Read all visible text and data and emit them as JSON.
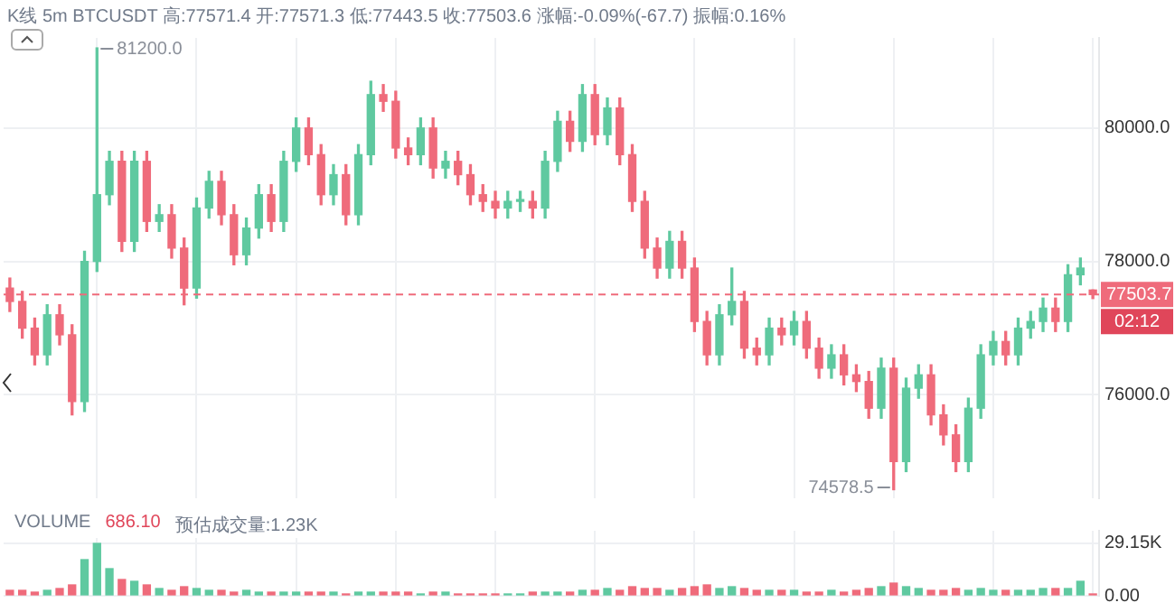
{
  "chart_data": [
    {
      "type": "candlestick",
      "title": "K线 5m BTCUSDT 高:77571.4 开:77571.3 低:77443.5 收:77503.6 涨幅:-0.09%(-67.7) 振幅:0.16%",
      "categories": [
        null,
        null,
        null,
        null,
        null,
        null,
        null,
        null,
        null,
        null,
        null,
        null,
        null,
        null,
        null,
        null,
        null,
        null,
        null,
        null,
        null,
        null,
        null,
        null,
        null,
        null,
        null,
        null,
        null,
        null,
        null,
        null,
        null,
        null,
        null,
        null,
        null,
        null,
        null,
        null,
        null,
        null,
        null,
        null,
        null,
        null,
        null,
        null,
        null,
        null,
        null,
        null,
        null,
        null,
        null,
        null,
        null,
        null,
        null,
        null,
        null,
        null,
        null,
        null,
        null,
        null,
        null,
        null,
        null,
        null,
        null,
        null,
        null,
        null,
        null,
        null,
        null,
        null,
        null,
        null,
        null,
        null,
        null,
        null,
        null,
        null,
        null,
        null
      ],
      "ohlc": [
        [
          77600,
          77750,
          77250,
          77400
        ],
        [
          77400,
          77550,
          76850,
          77000
        ],
        [
          77000,
          77150,
          76450,
          76600
        ],
        [
          76600,
          77350,
          76450,
          77200
        ],
        [
          77200,
          77350,
          76750,
          76900
        ],
        [
          76900,
          77050,
          75700,
          75900
        ],
        [
          75900,
          78150,
          75750,
          78000
        ],
        [
          78000,
          81200,
          77850,
          79000
        ],
        [
          79000,
          79650,
          78850,
          79500
        ],
        [
          79500,
          79650,
          78150,
          78300
        ],
        [
          78300,
          79650,
          78150,
          79500
        ],
        [
          79500,
          79650,
          78450,
          78600
        ],
        [
          78600,
          78850,
          78450,
          78700
        ],
        [
          78700,
          78850,
          78050,
          78200
        ],
        [
          78200,
          78350,
          77350,
          77600
        ],
        [
          77600,
          78950,
          77450,
          78800
        ],
        [
          78800,
          79350,
          78650,
          79200
        ],
        [
          79200,
          79350,
          78550,
          78700
        ],
        [
          78700,
          78850,
          77950,
          78100
        ],
        [
          78100,
          78650,
          77950,
          78500
        ],
        [
          78500,
          79150,
          78350,
          79000
        ],
        [
          79000,
          79150,
          78450,
          78600
        ],
        [
          78600,
          79650,
          78450,
          79500
        ],
        [
          79500,
          80150,
          79350,
          80000
        ],
        [
          80000,
          80150,
          79450,
          79600
        ],
        [
          79600,
          79750,
          78850,
          79000
        ],
        [
          79000,
          79450,
          78850,
          79300
        ],
        [
          79300,
          79450,
          78550,
          78700
        ],
        [
          78700,
          79750,
          78550,
          79600
        ],
        [
          79600,
          80700,
          79450,
          80500
        ],
        [
          80500,
          80650,
          80250,
          80400
        ],
        [
          80400,
          80550,
          79550,
          79700
        ],
        [
          79700,
          79850,
          79450,
          79600
        ],
        [
          79600,
          80150,
          79450,
          80000
        ],
        [
          80000,
          80150,
          79250,
          79400
        ],
        [
          79400,
          79650,
          79250,
          79500
        ],
        [
          79500,
          79650,
          79150,
          79300
        ],
        [
          79300,
          79450,
          78850,
          79000
        ],
        [
          79000,
          79150,
          78750,
          78900
        ],
        [
          78900,
          79050,
          78650,
          78800
        ],
        [
          78800,
          79050,
          78650,
          78900
        ],
        [
          78900,
          79050,
          78750,
          78900
        ],
        [
          78900,
          79050,
          78650,
          78800
        ],
        [
          78800,
          79650,
          78650,
          79500
        ],
        [
          79500,
          80250,
          79350,
          80100
        ],
        [
          80100,
          80250,
          79650,
          79800
        ],
        [
          79800,
          80650,
          79650,
          80500
        ],
        [
          80500,
          80650,
          79750,
          79900
        ],
        [
          79900,
          80450,
          79750,
          80300
        ],
        [
          80300,
          80450,
          79450,
          79600
        ],
        [
          79600,
          79750,
          78750,
          78900
        ],
        [
          78900,
          79050,
          78050,
          78200
        ],
        [
          78200,
          78350,
          77750,
          77900
        ],
        [
          77900,
          78450,
          77750,
          78300
        ],
        [
          78300,
          78450,
          77750,
          77900
        ],
        [
          77900,
          78050,
          76950,
          77100
        ],
        [
          77100,
          77250,
          76450,
          76600
        ],
        [
          76600,
          77350,
          76450,
          77200
        ],
        [
          77200,
          77900,
          77050,
          77400
        ],
        [
          77400,
          77550,
          76550,
          76700
        ],
        [
          76700,
          76850,
          76450,
          76600
        ],
        [
          76600,
          77150,
          76450,
          77000
        ],
        [
          77000,
          77150,
          76750,
          76900
        ],
        [
          76900,
          77250,
          76750,
          77100
        ],
        [
          77100,
          77250,
          76550,
          76700
        ],
        [
          76700,
          76850,
          76250,
          76400
        ],
        [
          76400,
          76750,
          76250,
          76600
        ],
        [
          76600,
          76750,
          76150,
          76300
        ],
        [
          76300,
          76450,
          76050,
          76200
        ],
        [
          76200,
          76350,
          75650,
          75800
        ],
        [
          75800,
          76550,
          75650,
          76400
        ],
        [
          76400,
          76550,
          74578.5,
          75000
        ],
        [
          75000,
          76250,
          74850,
          76100
        ],
        [
          76100,
          76450,
          75950,
          76300
        ],
        [
          76300,
          76450,
          75550,
          75700
        ],
        [
          75700,
          75850,
          75250,
          75400
        ],
        [
          75400,
          75550,
          74850,
          75000
        ],
        [
          75000,
          75950,
          74850,
          75800
        ],
        [
          75800,
          76750,
          75650,
          76600
        ],
        [
          76600,
          76950,
          76450,
          76800
        ],
        [
          76800,
          76950,
          76450,
          76600
        ],
        [
          76600,
          77150,
          76450,
          77000
        ],
        [
          77000,
          77250,
          76850,
          77100
        ],
        [
          77100,
          77450,
          76950,
          77300
        ],
        [
          77300,
          77450,
          76950,
          77100
        ],
        [
          77100,
          77950,
          76950,
          77800
        ],
        [
          77800,
          78050,
          77650,
          77900
        ],
        [
          77571.3,
          77571.4,
          77443.5,
          77503.6
        ]
      ],
      "colors": [
        "#ef6b7b",
        "#ef6b7b",
        "#ef6b7b",
        "#5fc9a0",
        "#ef6b7b",
        "#ef6b7b",
        "#5fc9a0",
        "#5fc9a0",
        "#5fc9a0",
        "#ef6b7b",
        "#5fc9a0",
        "#ef6b7b",
        "#5fc9a0",
        "#ef6b7b",
        "#ef6b7b",
        "#5fc9a0",
        "#5fc9a0",
        "#ef6b7b",
        "#ef6b7b",
        "#5fc9a0",
        "#5fc9a0",
        "#ef6b7b",
        "#5fc9a0",
        "#5fc9a0",
        "#ef6b7b",
        "#ef6b7b",
        "#5fc9a0",
        "#ef6b7b",
        "#5fc9a0",
        "#5fc9a0",
        "#ef6b7b",
        "#ef6b7b",
        "#ef6b7b",
        "#5fc9a0",
        "#ef6b7b",
        "#5fc9a0",
        "#ef6b7b",
        "#ef6b7b",
        "#ef6b7b",
        "#ef6b7b",
        "#5fc9a0",
        "#5fc9a0",
        "#ef6b7b",
        "#5fc9a0",
        "#5fc9a0",
        "#ef6b7b",
        "#5fc9a0",
        "#ef6b7b",
        "#5fc9a0",
        "#ef6b7b",
        "#ef6b7b",
        "#ef6b7b",
        "#ef6b7b",
        "#5fc9a0",
        "#ef6b7b",
        "#ef6b7b",
        "#ef6b7b",
        "#5fc9a0",
        "#5fc9a0",
        "#ef6b7b",
        "#ef6b7b",
        "#5fc9a0",
        "#ef6b7b",
        "#5fc9a0",
        "#ef6b7b",
        "#ef6b7b",
        "#5fc9a0",
        "#ef6b7b",
        "#ef6b7b",
        "#ef6b7b",
        "#5fc9a0",
        "#ef6b7b",
        "#5fc9a0",
        "#5fc9a0",
        "#ef6b7b",
        "#ef6b7b",
        "#ef6b7b",
        "#5fc9a0",
        "#5fc9a0",
        "#5fc9a0",
        "#ef6b7b",
        "#5fc9a0",
        "#5fc9a0",
        "#5fc9a0",
        "#ef6b7b",
        "#5fc9a0",
        "#5fc9a0",
        "#ef6b7b"
      ],
      "ylim": [
        74450,
        81350
      ],
      "yticks": [
        {
          "value": 76000,
          "label": "76000.0"
        },
        {
          "value": 78000,
          "label": "78000.0"
        },
        {
          "value": 80000,
          "label": "80000.0"
        }
      ],
      "tick_labels": "y",
      "grid": true,
      "ref_lines": [
        {
          "axis": "y",
          "value": 77503.7,
          "label": "77503.7",
          "color": "#ef6b7b",
          "line_style": "dashed"
        }
      ],
      "annotations": [
        "81200.0",
        "74578.5",
        "02:12"
      ]
    },
    {
      "type": "bar",
      "categories": [
        null,
        null,
        null,
        null,
        null,
        null,
        null,
        null,
        null,
        null,
        null,
        null,
        null,
        null,
        null,
        null,
        null,
        null,
        null,
        null,
        null,
        null,
        null,
        null,
        null,
        null,
        null,
        null,
        null,
        null,
        null,
        null,
        null,
        null,
        null,
        null,
        null,
        null,
        null,
        null,
        null,
        null,
        null,
        null,
        null,
        null,
        null,
        null,
        null,
        null,
        null,
        null,
        null,
        null,
        null,
        null,
        null,
        null,
        null,
        null,
        null,
        null,
        null,
        null,
        null,
        null,
        null,
        null,
        null,
        null,
        null,
        null,
        null,
        null,
        null,
        null,
        null,
        null,
        null,
        null,
        null,
        null,
        null,
        null,
        null,
        null,
        null,
        null
      ],
      "values": [
        3000,
        3000,
        2000,
        3000,
        4000,
        6000,
        20000,
        29000,
        15000,
        9000,
        8000,
        6000,
        4000,
        3000,
        5000,
        4000,
        3000,
        3000,
        2000,
        3000,
        2000,
        2000,
        2000,
        2000,
        2000,
        2000,
        2000,
        1000,
        2000,
        2000,
        2000,
        2000,
        2000,
        1000,
        2000,
        2000,
        1000,
        1000,
        1000,
        1000,
        1000,
        1000,
        2000,
        2000,
        2000,
        2000,
        3000,
        3000,
        4000,
        3000,
        5000,
        4000,
        4000,
        3000,
        4000,
        5000,
        6000,
        4000,
        5000,
        4000,
        3000,
        3000,
        3000,
        3000,
        2000,
        2000,
        3000,
        2000,
        3000,
        4000,
        5000,
        7000,
        5000,
        4000,
        3000,
        3000,
        4000,
        3000,
        4000,
        3000,
        3000,
        3000,
        3000,
        4000,
        4000,
        4000,
        8000,
        1000
      ],
      "colors": [
        "#ef6b7b",
        "#ef6b7b",
        "#ef6b7b",
        "#5fc9a0",
        "#ef6b7b",
        "#ef6b7b",
        "#5fc9a0",
        "#5fc9a0",
        "#5fc9a0",
        "#ef6b7b",
        "#5fc9a0",
        "#ef6b7b",
        "#5fc9a0",
        "#ef6b7b",
        "#ef6b7b",
        "#5fc9a0",
        "#5fc9a0",
        "#ef6b7b",
        "#ef6b7b",
        "#5fc9a0",
        "#5fc9a0",
        "#ef6b7b",
        "#5fc9a0",
        "#5fc9a0",
        "#ef6b7b",
        "#ef6b7b",
        "#5fc9a0",
        "#ef6b7b",
        "#5fc9a0",
        "#5fc9a0",
        "#ef6b7b",
        "#ef6b7b",
        "#ef6b7b",
        "#5fc9a0",
        "#ef6b7b",
        "#5fc9a0",
        "#ef6b7b",
        "#ef6b7b",
        "#ef6b7b",
        "#ef6b7b",
        "#5fc9a0",
        "#5fc9a0",
        "#ef6b7b",
        "#5fc9a0",
        "#5fc9a0",
        "#ef6b7b",
        "#5fc9a0",
        "#ef6b7b",
        "#5fc9a0",
        "#ef6b7b",
        "#ef6b7b",
        "#ef6b7b",
        "#ef6b7b",
        "#5fc9a0",
        "#ef6b7b",
        "#ef6b7b",
        "#ef6b7b",
        "#5fc9a0",
        "#5fc9a0",
        "#ef6b7b",
        "#ef6b7b",
        "#5fc9a0",
        "#ef6b7b",
        "#5fc9a0",
        "#ef6b7b",
        "#ef6b7b",
        "#5fc9a0",
        "#ef6b7b",
        "#ef6b7b",
        "#ef6b7b",
        "#5fc9a0",
        "#ef6b7b",
        "#5fc9a0",
        "#5fc9a0",
        "#ef6b7b",
        "#ef6b7b",
        "#ef6b7b",
        "#5fc9a0",
        "#5fc9a0",
        "#5fc9a0",
        "#ef6b7b",
        "#5fc9a0",
        "#5fc9a0",
        "#5fc9a0",
        "#ef6b7b",
        "#5fc9a0",
        "#5fc9a0",
        "#ef6b7b"
      ],
      "ylim": [
        0,
        36000
      ],
      "yticks": [
        {
          "value": 0,
          "label": "0.00"
        },
        {
          "value": 29150,
          "label": "29.15K"
        }
      ],
      "tick_labels": "y",
      "grid": true,
      "annotations": [
        "VOLUME",
        "686.10",
        "预估成交量:1.23K"
      ]
    }
  ]
}
